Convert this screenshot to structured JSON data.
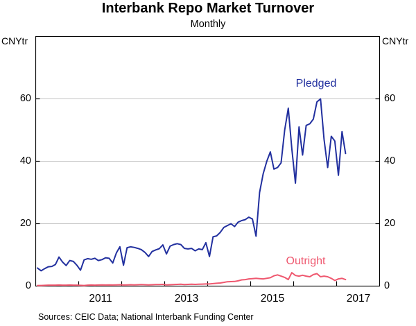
{
  "chart_data": {
    "type": "line",
    "title": "Interbank Repo Market Turnover",
    "subtitle": "Monthly",
    "unit_left": "CNYtr",
    "unit_right": "CNYtr",
    "sources": "Sources: CEIC Data; National Interbank Funding Center",
    "x_axis": {
      "start_year": 2010,
      "frequency": "monthly",
      "tick_years": [
        2011,
        2012,
        2013,
        2014,
        2015,
        2016,
        2017
      ],
      "label_years": [
        "2011",
        "2013",
        "2015",
        "2017"
      ]
    },
    "y_axis": {
      "min": 0,
      "max": 80,
      "tick_labels": [
        "0",
        "20",
        "40",
        "60"
      ],
      "tick_values": [
        0,
        20,
        40,
        60
      ],
      "gridline_values": [
        20,
        40,
        60
      ]
    },
    "colors": {
      "grid": "#c6c6c6",
      "axis": "#000000",
      "pledged": "#22309f",
      "outright": "#ef586f"
    },
    "legend_position": "annotations-on-chart",
    "series": [
      {
        "name": "Pledged",
        "color": "#22309f",
        "first_point": "Jan 2010",
        "last_point": "Mar 2017",
        "values": [
          5.8,
          4.9,
          5.6,
          6.2,
          6.3,
          6.9,
          9.3,
          7.7,
          6.6,
          8.2,
          7.9,
          6.7,
          5.1,
          8.4,
          8.8,
          8.6,
          8.9,
          8.2,
          8.5,
          9.1,
          8.9,
          7.4,
          10.6,
          12.6,
          6.7,
          12.3,
          12.6,
          12.4,
          12.1,
          11.7,
          10.8,
          9.5,
          11.1,
          11.6,
          12.0,
          13.2,
          10.3,
          12.8,
          13.3,
          13.6,
          13.3,
          12.1,
          11.9,
          12.1,
          11.3,
          11.9,
          11.7,
          13.9,
          9.5,
          15.8,
          16.1,
          17.2,
          18.8,
          19.4,
          20.0,
          19.1,
          20.5,
          21.0,
          21.3,
          22.1,
          21.5,
          16.0,
          30.0,
          36.0,
          40.0,
          43.0,
          37.5,
          38.0,
          39.5,
          50.0,
          57.0,
          44.0,
          33.0,
          51.0,
          42.0,
          51.5,
          52.0,
          53.5,
          59.0,
          60.0,
          47.0,
          38.0,
          48.0,
          46.5,
          35.5,
          49.5,
          42.5
        ]
      },
      {
        "name": "Outright",
        "color": "#ef586f",
        "first_point": "Jan 2010",
        "last_point": "Mar 2017",
        "values": [
          0.2,
          0.2,
          0.25,
          0.3,
          0.3,
          0.3,
          0.35,
          0.3,
          0.3,
          0.35,
          0.3,
          0.3,
          0.25,
          0.2,
          0.3,
          0.35,
          0.3,
          0.35,
          0.4,
          0.35,
          0.4,
          0.35,
          0.4,
          0.45,
          0.35,
          0.4,
          0.45,
          0.4,
          0.45,
          0.5,
          0.45,
          0.4,
          0.45,
          0.5,
          0.5,
          0.55,
          0.4,
          0.45,
          0.5,
          0.55,
          0.6,
          0.5,
          0.55,
          0.6,
          0.55,
          0.6,
          0.65,
          0.7,
          0.7,
          0.8,
          0.9,
          1.0,
          1.2,
          1.4,
          1.45,
          1.5,
          1.7,
          2.0,
          2.1,
          2.3,
          2.4,
          2.5,
          2.4,
          2.3,
          2.5,
          2.7,
          3.3,
          3.6,
          3.2,
          2.8,
          2.1,
          4.3,
          3.4,
          3.2,
          3.5,
          3.2,
          3.0,
          3.7,
          4.0,
          3.0,
          3.2,
          3.0,
          2.5,
          1.8,
          2.3,
          2.5,
          2.1
        ]
      }
    ]
  }
}
